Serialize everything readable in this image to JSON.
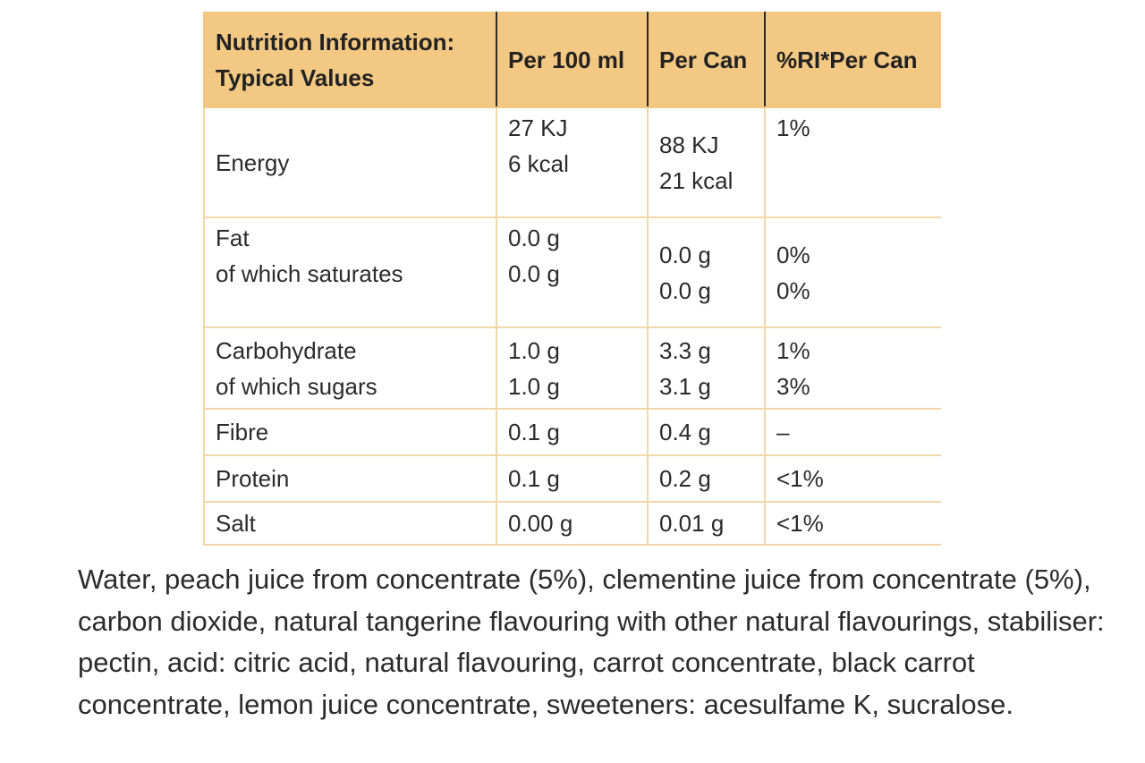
{
  "table": {
    "headers": [
      "Nutrition Information:",
      "Typical Values",
      "Per 100 ml",
      "Per Can",
      "%RI*Per Can"
    ],
    "rows": {
      "energy": {
        "label": [
          "Energy"
        ],
        "per100": [
          "27 KJ",
          "6 kcal"
        ],
        "perCan": [
          "88 KJ",
          "21 kcal"
        ],
        "ri": [
          "1%"
        ]
      },
      "fat": {
        "label": [
          "Fat",
          "of which saturates"
        ],
        "per100": [
          "0.0 g",
          "0.0 g"
        ],
        "perCan": [
          "0.0 g",
          "0.0 g"
        ],
        "ri": [
          "0%",
          "0%"
        ]
      },
      "carb": {
        "label": [
          "Carbohydrate",
          "of which sugars"
        ],
        "per100": [
          "1.0 g",
          "1.0 g"
        ],
        "perCan": [
          "3.3 g",
          "3.1 g"
        ],
        "ri": [
          "1%",
          "3%"
        ]
      },
      "fibre": {
        "label": [
          "Fibre"
        ],
        "per100": [
          "0.1 g"
        ],
        "perCan": [
          "0.4 g"
        ],
        "ri": [
          "–"
        ]
      },
      "protein": {
        "label": [
          "Protein"
        ],
        "per100": [
          "0.1 g"
        ],
        "perCan": [
          "0.2 g"
        ],
        "ri": [
          "<1%"
        ]
      },
      "salt": {
        "label": [
          "Salt"
        ],
        "per100": [
          "0.00 g"
        ],
        "perCan": [
          "0.01 g"
        ],
        "ri": [
          "<1%"
        ]
      }
    }
  },
  "ingredients": "Water, peach juice from concentrate (5%), clementine juice from concentrate (5%), carbon dioxide, natural tangerine flavouring with other natural flavourings, stabiliser: pectin, acid: citric acid, natural flavouring, carrot concentrate, black carrot concentrate, lemon juice concentrate, sweeteners: acesulfame K, sucralose.",
  "colors": {
    "header_bg": "#f2c882",
    "grid": "#f0d9a8",
    "text": "#2b2b2b"
  }
}
